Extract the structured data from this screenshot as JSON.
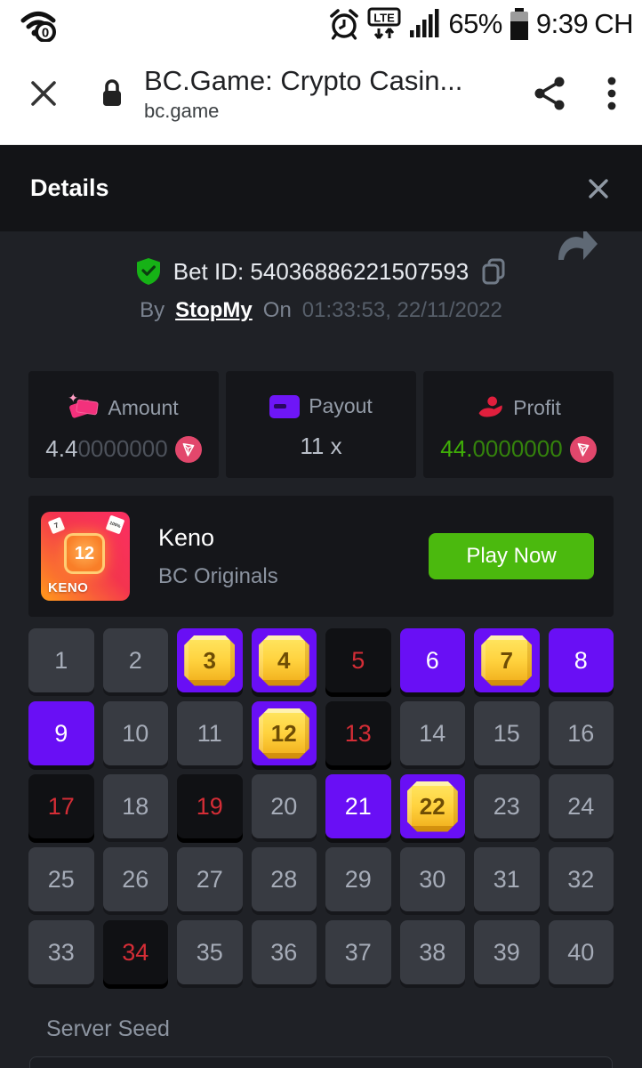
{
  "status_bar": {
    "battery_percent": "65%",
    "time": "9:39",
    "network_label": "CH",
    "lte_label": "LTE",
    "wifi_badge": "0",
    "icons": [
      "wifi-icon",
      "alarm-icon",
      "lte-icon",
      "signal-icon",
      "battery-icon"
    ]
  },
  "browser": {
    "title": "BC.Game: Crypto Casin...",
    "url": "bc.game",
    "icons": [
      "close-icon",
      "lock-icon",
      "share-icon",
      "menu-icon"
    ]
  },
  "modal": {
    "title": "Details",
    "close_icon": "close-icon",
    "forward_icon": "forward-arrow-icon"
  },
  "bet": {
    "id_text": "Bet ID: 54036886221507593",
    "by_label": "By",
    "user": "StopMy",
    "on_label": "On",
    "timestamp": "01:33:53, 22/11/2022"
  },
  "stats": {
    "amount": {
      "label": "Amount",
      "value_main": "4.4",
      "value_rest": "0000000",
      "currency": "TRX"
    },
    "payout": {
      "label": "Payout",
      "value": "11 x"
    },
    "profit": {
      "label": "Profit",
      "value_main": "44.",
      "value_rest": "0000000",
      "currency": "TRX"
    }
  },
  "game": {
    "name": "Keno",
    "provider": "BC Originals",
    "play_button": "Play Now",
    "thumb_number": "12",
    "thumb_label": "KENO",
    "thumb_tag1": "7",
    "thumb_tag2": "100%"
  },
  "keno": {
    "count": 40,
    "picked_hit": [
      3,
      4,
      7,
      12,
      22
    ],
    "picked_miss": [
      6,
      8,
      9,
      21
    ],
    "drawn_miss": [
      5,
      13,
      17,
      19,
      34
    ]
  },
  "server_seed": {
    "label": "Server Seed",
    "value": ""
  },
  "colors": {
    "accent_purple": "#690ff5",
    "gem_gold": "#ffd23e",
    "drawn_red": "#d42d36",
    "profit_green": "#3fae07",
    "play_green": "#4bb90e",
    "tron_pink": "#e2476c",
    "card_bg": "#15161a",
    "body_bg": "#1f2126",
    "header_bg": "#131417"
  }
}
